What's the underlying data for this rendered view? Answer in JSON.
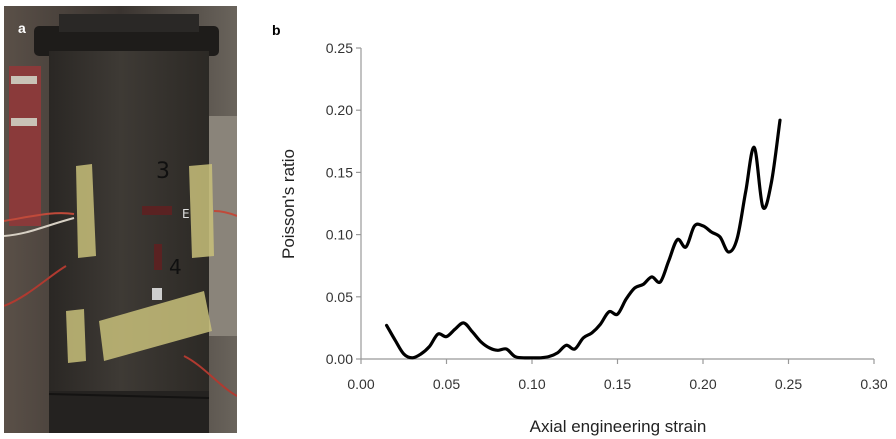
{
  "panels": {
    "a": "a",
    "b": "b"
  },
  "photo": {
    "markings": [
      "3",
      "4",
      "E"
    ]
  },
  "chart_data": {
    "type": "line",
    "xlabel": "Axial engineering strain",
    "ylabel": "Poisson's ratio",
    "xlim": [
      0,
      0.3
    ],
    "ylim": [
      0,
      0.25
    ],
    "xticks": [
      "0.00",
      "0.05",
      "0.10",
      "0.15",
      "0.20",
      "0.25",
      "0.30"
    ],
    "yticks": [
      "0.00",
      "0.05",
      "0.10",
      "0.15",
      "0.20",
      "0.25"
    ],
    "grid": false,
    "color": "#000000",
    "series": [
      {
        "x": [
          0.015,
          0.02,
          0.025,
          0.03,
          0.035,
          0.04,
          0.045,
          0.05,
          0.055,
          0.06,
          0.065,
          0.07,
          0.075,
          0.08,
          0.085,
          0.09,
          0.095,
          0.1,
          0.105,
          0.11,
          0.115,
          0.12,
          0.125,
          0.13,
          0.135,
          0.14,
          0.145,
          0.15,
          0.155,
          0.16,
          0.165,
          0.17,
          0.175,
          0.18,
          0.185,
          0.19,
          0.195,
          0.2,
          0.205,
          0.21,
          0.215,
          0.22,
          0.225,
          0.23,
          0.235,
          0.24,
          0.245
        ],
        "y": [
          0.027,
          0.015,
          0.004,
          0.001,
          0.004,
          0.01,
          0.02,
          0.018,
          0.024,
          0.029,
          0.022,
          0.014,
          0.009,
          0.007,
          0.008,
          0.002,
          0.001,
          0.001,
          0.001,
          0.002,
          0.005,
          0.011,
          0.008,
          0.017,
          0.021,
          0.028,
          0.038,
          0.036,
          0.048,
          0.057,
          0.06,
          0.066,
          0.062,
          0.079,
          0.096,
          0.09,
          0.107,
          0.107,
          0.102,
          0.098,
          0.086,
          0.097,
          0.135,
          0.17,
          0.122,
          0.142,
          0.192
        ]
      }
    ]
  }
}
